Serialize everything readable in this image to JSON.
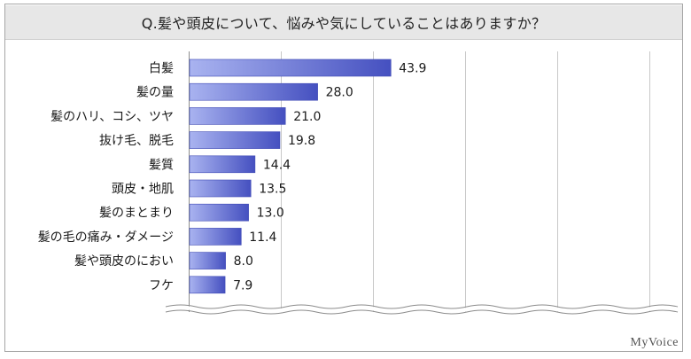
{
  "title": "Q.髪や頭皮について、悩みや気にしていることはありますか？",
  "logo": "MyVoice",
  "colors": {
    "bar_light": "#a9b3f0",
    "bar_dark": "#4550c0",
    "bar_edge": "#3f4ab5",
    "grid": "#c8c8c8",
    "title_bg": "#e7e7e7",
    "frame": "#a6a6a6"
  },
  "chart_data": {
    "type": "bar",
    "orientation": "horizontal",
    "categories": [
      "白髪",
      "髪の量",
      "髪のハリ、コシ、ツヤ",
      "抜け毛、脱毛",
      "髪質",
      "頭皮・地肌",
      "髪のまとまり",
      "髪の毛の痛み・ダメージ",
      "髪や頭皮のにおい",
      "フケ"
    ],
    "values": [
      43.9,
      28.0,
      21.0,
      19.8,
      14.4,
      13.5,
      13.0,
      11.4,
      8.0,
      7.9
    ],
    "value_labels": [
      "43.9",
      "28.0",
      "21.0",
      "19.8",
      "14.4",
      "13.5",
      "13.0",
      "11.4",
      "8.0",
      "7.9"
    ],
    "xlim": [
      0,
      100
    ],
    "grid": true,
    "gridlines_at": [
      0,
      20,
      40,
      60,
      80,
      100
    ],
    "title": "Q.髪や頭皮について、悩みや気にしていることはありますか？",
    "xlabel": "",
    "ylabel": ""
  }
}
